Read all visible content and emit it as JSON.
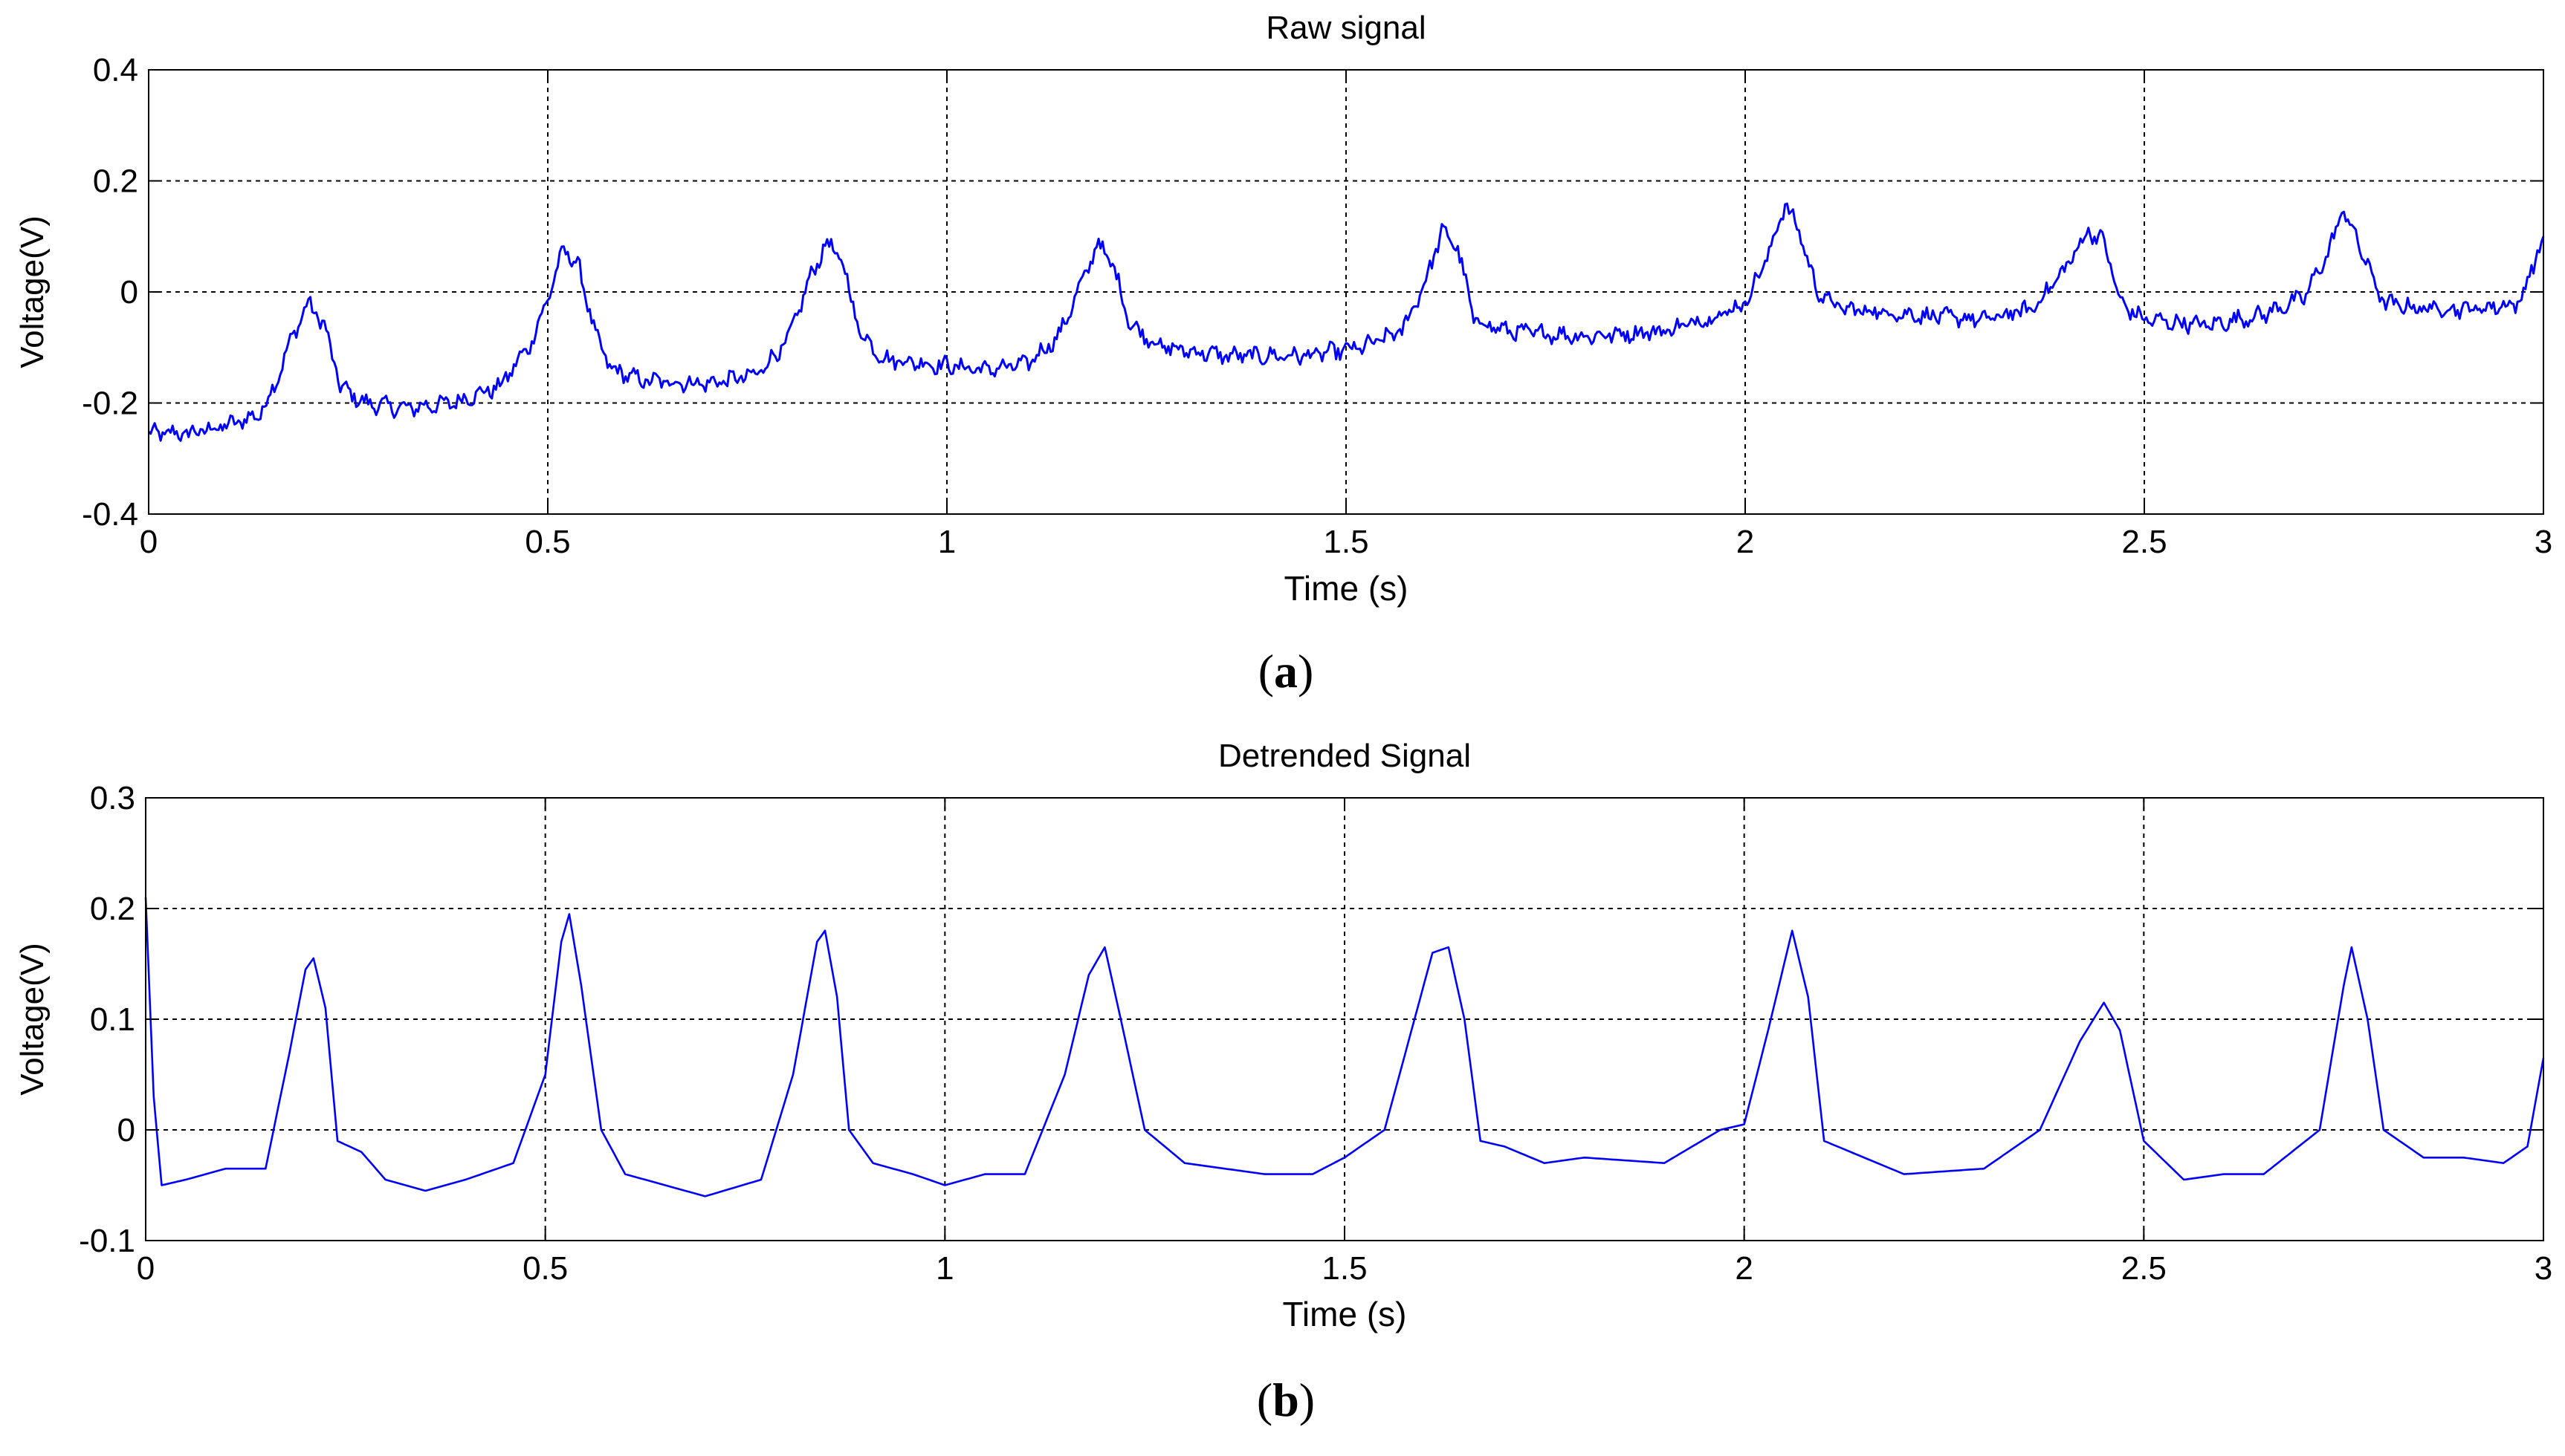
{
  "line_color": "#0000ff",
  "chart_data": [
    {
      "type": "line",
      "panel_label": "a",
      "title": "Raw signal",
      "xlabel": "Time (s)",
      "ylabel": "Voltage(V)",
      "xlim": [
        0,
        3
      ],
      "ylim": [
        -0.4,
        0.4
      ],
      "grid": true,
      "x_ticks": [
        0,
        0.5,
        1,
        1.5,
        2,
        2.5,
        3
      ],
      "x_tick_labels": [
        "0",
        "0.5",
        "1",
        "1.5",
        "2",
        "2.5",
        "3"
      ],
      "y_ticks": [
        -0.4,
        -0.2,
        0,
        0.2,
        0.4
      ],
      "y_tick_labels": [
        "-0.4",
        "-0.2",
        "0",
        "0.2",
        "0.4"
      ],
      "series": [
        {
          "name": "raw",
          "noise": 0.012,
          "x": [
            0,
            0.05,
            0.1,
            0.14,
            0.16,
            0.18,
            0.2,
            0.22,
            0.24,
            0.27,
            0.32,
            0.38,
            0.44,
            0.48,
            0.51,
            0.52,
            0.54,
            0.56,
            0.58,
            0.62,
            0.7,
            0.76,
            0.8,
            0.83,
            0.85,
            0.87,
            0.89,
            0.92,
            0.98,
            1.05,
            1.1,
            1.14,
            1.17,
            1.19,
            1.21,
            1.23,
            1.27,
            1.35,
            1.45,
            1.52,
            1.57,
            1.6,
            1.62,
            1.64,
            1.66,
            1.7,
            1.8,
            1.9,
            1.97,
            2.0,
            2.03,
            2.05,
            2.07,
            2.09,
            2.12,
            2.2,
            2.3,
            2.36,
            2.4,
            2.43,
            2.45,
            2.47,
            2.5,
            2.58,
            2.65,
            2.7,
            2.73,
            2.75,
            2.77,
            2.8,
            2.85,
            2.92,
            2.97,
            3.0
          ],
          "y": [
            -0.255,
            -0.255,
            -0.24,
            -0.22,
            -0.16,
            -0.08,
            -0.02,
            -0.06,
            -0.17,
            -0.2,
            -0.21,
            -0.2,
            -0.17,
            -0.09,
            0.03,
            0.08,
            0.04,
            -0.08,
            -0.14,
            -0.16,
            -0.165,
            -0.15,
            -0.09,
            0.03,
            0.09,
            0.05,
            -0.07,
            -0.12,
            -0.13,
            -0.14,
            -0.13,
            -0.08,
            0.02,
            0.09,
            0.04,
            -0.06,
            -0.1,
            -0.115,
            -0.115,
            -0.1,
            -0.07,
            0.02,
            0.11,
            0.08,
            -0.05,
            -0.07,
            -0.08,
            -0.07,
            -0.04,
            -0.02,
            0.07,
            0.16,
            0.1,
            0.0,
            -0.03,
            -0.04,
            -0.05,
            -0.03,
            0.04,
            0.11,
            0.09,
            -0.02,
            -0.05,
            -0.06,
            -0.04,
            -0.01,
            0.07,
            0.15,
            0.08,
            -0.02,
            -0.03,
            -0.03,
            -0.02,
            0.1
          ]
        }
      ]
    },
    {
      "type": "line",
      "panel_label": "b",
      "title": "Detrended Signal",
      "xlabel": "Time (s)",
      "ylabel": "Voltage(V)",
      "xlim": [
        0,
        3
      ],
      "ylim": [
        -0.1,
        0.3
      ],
      "grid": true,
      "x_ticks": [
        0,
        0.5,
        1,
        1.5,
        2,
        2.5,
        3
      ],
      "x_tick_labels": [
        "0",
        "0.5",
        "1",
        "1.5",
        "2",
        "2.5",
        "3"
      ],
      "y_ticks": [
        -0.1,
        0,
        0.1,
        0.2,
        0.3
      ],
      "y_tick_labels": [
        "-0.1",
        "0",
        "0.1",
        "0.2",
        "0.3"
      ],
      "series": [
        {
          "name": "detrended",
          "noise": 0,
          "x": [
            0,
            0.01,
            0.02,
            0.05,
            0.1,
            0.15,
            0.18,
            0.2,
            0.21,
            0.225,
            0.24,
            0.27,
            0.3,
            0.35,
            0.4,
            0.46,
            0.5,
            0.52,
            0.53,
            0.545,
            0.57,
            0.6,
            0.65,
            0.7,
            0.77,
            0.81,
            0.84,
            0.85,
            0.865,
            0.88,
            0.91,
            0.96,
            1.0,
            1.05,
            1.1,
            1.15,
            1.18,
            1.2,
            1.22,
            1.25,
            1.3,
            1.35,
            1.4,
            1.46,
            1.5,
            1.55,
            1.58,
            1.61,
            1.63,
            1.65,
            1.67,
            1.7,
            1.75,
            1.8,
            1.9,
            1.97,
            2.0,
            2.03,
            2.06,
            2.08,
            2.1,
            2.15,
            2.2,
            2.3,
            2.37,
            2.42,
            2.45,
            2.47,
            2.5,
            2.55,
            2.6,
            2.65,
            2.72,
            2.75,
            2.76,
            2.78,
            2.8,
            2.85,
            2.9,
            2.95,
            2.98,
            3.0
          ],
          "y": [
            0.21,
            0.03,
            -0.05,
            -0.045,
            -0.035,
            -0.035,
            0.07,
            0.145,
            0.155,
            0.11,
            -0.01,
            -0.02,
            -0.045,
            -0.055,
            -0.045,
            -0.03,
            0.05,
            0.17,
            0.195,
            0.13,
            0.0,
            -0.04,
            -0.05,
            -0.06,
            -0.045,
            0.05,
            0.17,
            0.18,
            0.12,
            0.0,
            -0.03,
            -0.04,
            -0.05,
            -0.04,
            -0.04,
            0.05,
            0.14,
            0.165,
            0.1,
            0.0,
            -0.03,
            -0.035,
            -0.04,
            -0.04,
            -0.025,
            0.0,
            0.08,
            0.16,
            0.165,
            0.1,
            -0.01,
            -0.015,
            -0.03,
            -0.025,
            -0.03,
            0.0,
            0.005,
            0.09,
            0.18,
            0.12,
            -0.01,
            -0.025,
            -0.04,
            -0.035,
            0.0,
            0.08,
            0.115,
            0.09,
            -0.01,
            -0.045,
            -0.04,
            -0.04,
            0.0,
            0.13,
            0.165,
            0.1,
            0.0,
            -0.025,
            -0.025,
            -0.03,
            -0.015,
            0.065
          ]
        }
      ]
    }
  ]
}
